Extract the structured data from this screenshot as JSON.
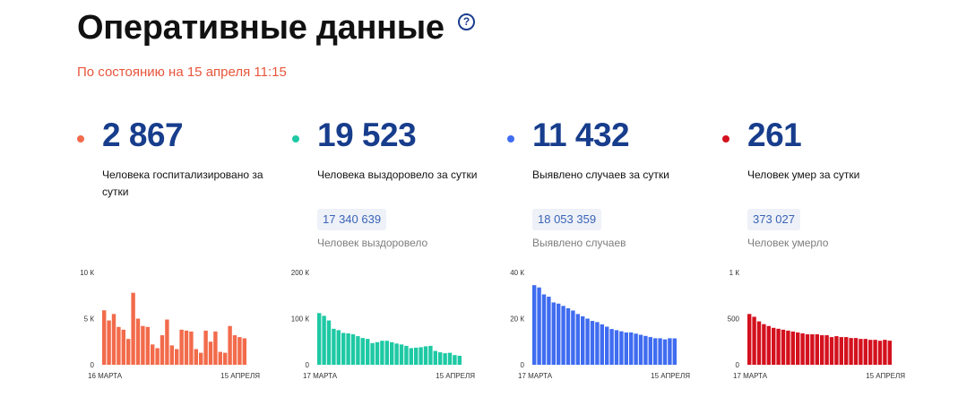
{
  "header": {
    "title": "Оперативные данные",
    "help_icon": "?",
    "subtitle": "По состоянию на 15 апреля 11:15"
  },
  "stats": [
    {
      "value": "2 867",
      "caption": "Человека госпитализировано за сутки",
      "color": "#f26b4b"
    },
    {
      "value": "19 523",
      "caption": "Человека выздоровело за сутки",
      "total": "17 340 639",
      "total_label": "Человек выздоровело",
      "color": "#1ec9a4"
    },
    {
      "value": "11 432",
      "caption": "Выявлено случаев за сутки",
      "total": "18 053 359",
      "total_label": "Выявлено случаев",
      "color": "#3f6cf0"
    },
    {
      "value": "261",
      "caption": "Человек умер за сутки",
      "total": "373 027",
      "total_label": "Человек умерло",
      "color": "#d4111e"
    }
  ],
  "chart_data": [
    {
      "type": "bar",
      "ylim": [
        0,
        10000
      ],
      "yticks": [
        0,
        5000,
        10000
      ],
      "ytick_labels": [
        "0",
        "5 К",
        "10 К"
      ],
      "x_start_label": "16 МАРТА",
      "x_end_label": "15 АПРЕЛЯ",
      "color": "#f26b4b",
      "values": [
        5900,
        4800,
        5500,
        4100,
        3800,
        2800,
        7800,
        5000,
        4200,
        4100,
        2200,
        1800,
        3200,
        4900,
        2100,
        1700,
        3800,
        3700,
        3600,
        1700,
        1300,
        3700,
        2500,
        3600,
        1400,
        1300,
        4200,
        3200,
        3000,
        2867
      ]
    },
    {
      "type": "bar",
      "ylim": [
        0,
        200000
      ],
      "yticks": [
        0,
        100000,
        200000
      ],
      "ytick_labels": [
        "0",
        "100 К",
        "200 К"
      ],
      "x_start_label": "17 МАРТА",
      "x_end_label": "15 АПРЕЛЯ",
      "color": "#1ec9a4",
      "values": [
        112000,
        106000,
        96000,
        78000,
        75000,
        69000,
        68000,
        66000,
        62000,
        58000,
        56000,
        47000,
        49000,
        52000,
        52000,
        49000,
        46000,
        44000,
        41000,
        36000,
        37000,
        38000,
        40000,
        41000,
        30000,
        27000,
        25000,
        26000,
        21000,
        19523
      ]
    },
    {
      "type": "bar",
      "ylim": [
        0,
        40000
      ],
      "yticks": [
        0,
        20000,
        40000
      ],
      "ytick_labels": [
        "0",
        "20 К",
        "40 К"
      ],
      "x_start_label": "17 МАРТА",
      "x_end_label": "15 АПРЕЛЯ",
      "color": "#3f6cf0",
      "values": [
        34500,
        33500,
        30500,
        29500,
        27000,
        26500,
        25500,
        24500,
        23500,
        22000,
        21000,
        20000,
        19000,
        18500,
        17500,
        16500,
        15500,
        15000,
        14500,
        14000,
        14000,
        13500,
        13000,
        12500,
        12000,
        11500,
        11500,
        11000,
        11500,
        11432
      ]
    },
    {
      "type": "bar",
      "ylim": [
        0,
        1000
      ],
      "yticks": [
        0,
        500,
        1000
      ],
      "ytick_labels": [
        "0",
        "500",
        "1 К"
      ],
      "x_start_label": "17 МАРТА",
      "x_end_label": "15 АПРЕЛЯ",
      "color": "#d4111e",
      "values": [
        550,
        520,
        470,
        440,
        420,
        400,
        390,
        380,
        370,
        360,
        350,
        340,
        330,
        330,
        330,
        320,
        320,
        300,
        310,
        300,
        300,
        290,
        290,
        280,
        280,
        270,
        270,
        260,
        270,
        261
      ]
    }
  ]
}
